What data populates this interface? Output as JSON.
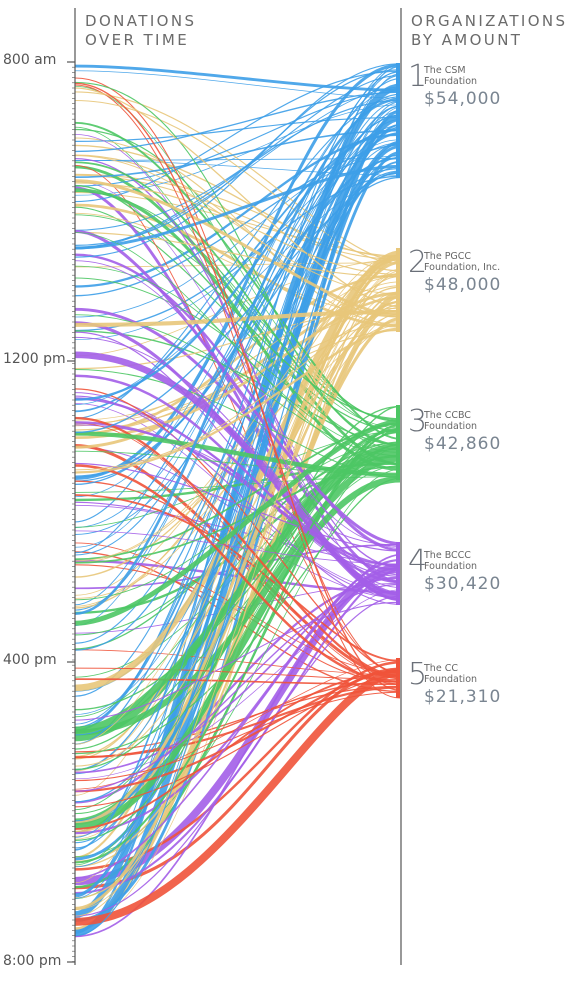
{
  "header": {
    "left_line1": "DONATIONS",
    "left_line2": "OVER TIME",
    "right_line1": "ORGANIZATIONS",
    "right_line2": "BY AMOUNT"
  },
  "colors": {
    "csm": "#3d9ee8",
    "pgcc": "#e8c77a",
    "ccbc": "#4cc664",
    "bccc": "#a35ee8",
    "cc": "#f0533a",
    "axis": "#555555"
  },
  "chart_data": {
    "type": "sankey",
    "time_axis": {
      "ticks": [
        "800 am",
        "1200 pm",
        "400 pm",
        "8:00 pm"
      ],
      "range": [
        "8:00 am",
        "8:00 pm"
      ]
    },
    "organizations": [
      {
        "rank": "1",
        "name_line1": "The CSM",
        "name_line2": "Foundation",
        "amount_label": "$54,000",
        "amount": 54000,
        "color_key": "csm"
      },
      {
        "rank": "2",
        "name_line1": "The PGCC",
        "name_line2": "Foundation, Inc.",
        "amount_label": "$48,000",
        "amount": 48000,
        "color_key": "pgcc"
      },
      {
        "rank": "3",
        "name_line1": "The CCBC",
        "name_line2": "Foundation",
        "amount_label": "$42,860",
        "amount": 42860,
        "color_key": "ccbc"
      },
      {
        "rank": "4",
        "name_line1": "The BCCC",
        "name_line2": "Foundation",
        "amount_label": "$30,420",
        "amount": 30420,
        "color_key": "bccc"
      },
      {
        "rank": "5",
        "name_line1": "The CC",
        "name_line2": "Foundation",
        "amount_label": "$21,310",
        "amount": 21310,
        "color_key": "cc"
      }
    ]
  }
}
